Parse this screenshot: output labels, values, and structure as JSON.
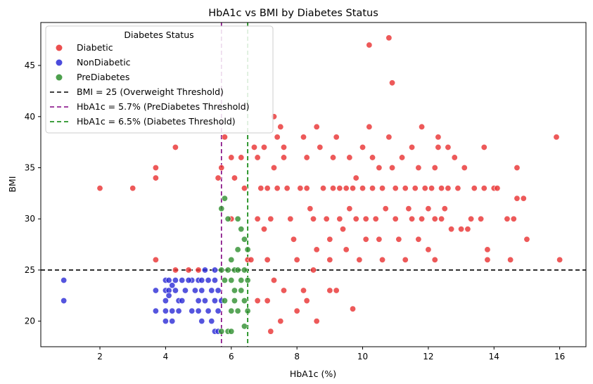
{
  "chart_data": {
    "type": "scatter",
    "title": "HbA1c vs BMI by Diabetes Status",
    "xlabel": "HbA1c (%)",
    "ylabel": "BMI",
    "xlim": [
      0.2,
      16.8
    ],
    "ylim": [
      17.5,
      49.2
    ],
    "xticks": [
      2,
      4,
      6,
      8,
      10,
      12,
      14,
      16
    ],
    "yticks": [
      20,
      25,
      30,
      35,
      40,
      45
    ],
    "grid": false,
    "legend": {
      "title": "Diabetes Status",
      "placement": "top-left"
    },
    "series": [
      {
        "name": "Diabetic",
        "color": "#e83030",
        "points": [
          [
            2.0,
            33
          ],
          [
            3.0,
            33
          ],
          [
            3.7,
            35
          ],
          [
            3.7,
            34
          ],
          [
            3.7,
            26
          ],
          [
            4.3,
            37
          ],
          [
            4.3,
            25
          ],
          [
            4.7,
            25
          ],
          [
            5.0,
            25
          ],
          [
            5.6,
            34
          ],
          [
            5.7,
            35
          ],
          [
            5.8,
            38
          ],
          [
            6.0,
            36
          ],
          [
            6.0,
            30
          ],
          [
            6.1,
            34
          ],
          [
            6.3,
            36
          ],
          [
            6.4,
            33
          ],
          [
            6.5,
            26
          ],
          [
            6.6,
            26
          ],
          [
            6.7,
            37
          ],
          [
            6.8,
            36
          ],
          [
            6.8,
            30
          ],
          [
            6.9,
            33
          ],
          [
            7.0,
            37
          ],
          [
            7.0,
            29
          ],
          [
            7.1,
            33
          ],
          [
            7.1,
            26
          ],
          [
            7.2,
            30
          ],
          [
            7.3,
            35
          ],
          [
            7.4,
            33
          ],
          [
            7.3,
            40
          ],
          [
            7.4,
            38
          ],
          [
            7.5,
            39
          ],
          [
            7.6,
            37
          ],
          [
            7.6,
            36
          ],
          [
            7.7,
            33
          ],
          [
            7.8,
            30
          ],
          [
            7.9,
            28
          ],
          [
            8.0,
            26
          ],
          [
            8.1,
            33
          ],
          [
            8.2,
            38
          ],
          [
            8.3,
            36
          ],
          [
            8.3,
            33
          ],
          [
            8.4,
            31
          ],
          [
            8.5,
            30
          ],
          [
            8.6,
            27
          ],
          [
            8.6,
            39
          ],
          [
            8.7,
            37
          ],
          [
            8.8,
            33
          ],
          [
            8.9,
            30
          ],
          [
            9.0,
            28
          ],
          [
            9.0,
            26
          ],
          [
            9.1,
            33
          ],
          [
            9.1,
            36
          ],
          [
            9.2,
            38
          ],
          [
            9.3,
            33
          ],
          [
            9.3,
            30
          ],
          [
            9.4,
            29
          ],
          [
            9.5,
            27
          ],
          [
            9.5,
            33
          ],
          [
            9.6,
            36
          ],
          [
            9.6,
            31
          ],
          [
            9.7,
            33
          ],
          [
            9.8,
            30
          ],
          [
            9.8,
            34
          ],
          [
            9.9,
            26
          ],
          [
            10.0,
            37
          ],
          [
            10.0,
            33
          ],
          [
            10.1,
            30
          ],
          [
            10.1,
            28
          ],
          [
            10.2,
            39
          ],
          [
            10.2,
            47
          ],
          [
            10.3,
            33
          ],
          [
            10.3,
            36
          ],
          [
            10.4,
            30
          ],
          [
            10.5,
            35
          ],
          [
            10.5,
            28
          ],
          [
            10.6,
            33
          ],
          [
            10.6,
            26
          ],
          [
            10.7,
            31
          ],
          [
            10.8,
            38
          ],
          [
            10.8,
            47.7
          ],
          [
            10.9,
            43.3
          ],
          [
            10.9,
            35
          ],
          [
            11.0,
            33
          ],
          [
            11.0,
            30
          ],
          [
            11.1,
            28
          ],
          [
            11.2,
            36
          ],
          [
            11.3,
            26
          ],
          [
            11.3,
            33
          ],
          [
            11.4,
            31
          ],
          [
            11.5,
            30
          ],
          [
            11.5,
            37
          ],
          [
            11.6,
            33
          ],
          [
            11.7,
            28
          ],
          [
            11.7,
            35
          ],
          [
            11.8,
            30
          ],
          [
            11.8,
            39
          ],
          [
            11.9,
            33
          ],
          [
            12.0,
            31
          ],
          [
            12.0,
            27
          ],
          [
            12.1,
            33
          ],
          [
            12.2,
            30
          ],
          [
            12.2,
            35
          ],
          [
            12.2,
            26
          ],
          [
            12.3,
            37
          ],
          [
            12.3,
            38
          ],
          [
            12.4,
            33
          ],
          [
            12.4,
            30
          ],
          [
            12.5,
            31
          ],
          [
            12.6,
            33
          ],
          [
            12.6,
            37
          ],
          [
            12.7,
            29
          ],
          [
            12.8,
            36
          ],
          [
            12.9,
            33
          ],
          [
            13.0,
            29
          ],
          [
            13.1,
            35
          ],
          [
            13.2,
            29
          ],
          [
            13.3,
            30
          ],
          [
            13.4,
            33
          ],
          [
            13.6,
            30
          ],
          [
            13.7,
            37
          ],
          [
            13.7,
            33
          ],
          [
            13.8,
            27
          ],
          [
            13.8,
            26
          ],
          [
            14.0,
            33
          ],
          [
            14.1,
            33
          ],
          [
            14.4,
            30
          ],
          [
            14.5,
            26
          ],
          [
            14.6,
            30
          ],
          [
            14.7,
            35
          ],
          [
            14.7,
            32
          ],
          [
            14.9,
            32
          ],
          [
            15.0,
            28
          ],
          [
            15.9,
            38
          ],
          [
            16.0,
            26
          ],
          [
            8.5,
            25
          ],
          [
            8.6,
            20
          ],
          [
            9.0,
            23
          ],
          [
            9.2,
            23
          ],
          [
            9.7,
            21.2
          ],
          [
            7.2,
            19
          ],
          [
            7.5,
            20
          ],
          [
            7.3,
            24
          ],
          [
            7.1,
            22
          ],
          [
            8.0,
            21
          ],
          [
            8.2,
            23
          ],
          [
            6.8,
            22
          ],
          [
            7.6,
            23
          ],
          [
            8.3,
            22
          ]
        ]
      },
      {
        "name": "NonDiabetic",
        "color": "#2b2bd6",
        "points": [
          [
            0.9,
            24
          ],
          [
            0.9,
            22
          ],
          [
            3.7,
            23
          ],
          [
            3.7,
            21
          ],
          [
            4.0,
            24
          ],
          [
            4.0,
            23
          ],
          [
            4.0,
            22
          ],
          [
            4.0,
            21
          ],
          [
            4.0,
            20
          ],
          [
            4.1,
            24
          ],
          [
            4.1,
            23
          ],
          [
            4.1,
            22.5
          ],
          [
            4.2,
            21
          ],
          [
            4.2,
            20
          ],
          [
            4.3,
            23
          ],
          [
            4.3,
            24
          ],
          [
            4.4,
            22
          ],
          [
            4.4,
            21
          ],
          [
            4.5,
            24
          ],
          [
            4.5,
            22
          ],
          [
            4.6,
            23
          ],
          [
            4.8,
            24
          ],
          [
            4.8,
            21
          ],
          [
            4.9,
            23
          ],
          [
            5.0,
            24
          ],
          [
            5.0,
            22
          ],
          [
            5.0,
            21
          ],
          [
            5.1,
            24
          ],
          [
            5.1,
            23
          ],
          [
            5.1,
            20
          ],
          [
            5.2,
            22
          ],
          [
            5.3,
            24
          ],
          [
            5.3,
            21
          ],
          [
            5.4,
            23
          ],
          [
            5.4,
            20
          ],
          [
            5.5,
            22
          ],
          [
            5.5,
            24
          ],
          [
            5.5,
            19
          ],
          [
            5.6,
            23
          ],
          [
            5.6,
            21
          ],
          [
            5.6,
            19
          ],
          [
            5.7,
            22
          ],
          [
            5.5,
            25
          ],
          [
            5.2,
            25
          ],
          [
            4.7,
            24
          ],
          [
            4.2,
            23.5
          ]
        ]
      },
      {
        "name": "PreDiabetes",
        "color": "#2e8f2e",
        "points": [
          [
            5.7,
            31
          ],
          [
            5.7,
            25
          ],
          [
            5.7,
            19
          ],
          [
            5.8,
            32
          ],
          [
            5.8,
            24
          ],
          [
            5.8,
            22
          ],
          [
            5.9,
            30
          ],
          [
            5.9,
            25
          ],
          [
            5.9,
            19
          ],
          [
            6.0,
            26
          ],
          [
            6.0,
            24
          ],
          [
            6.0,
            21
          ],
          [
            6.0,
            19
          ],
          [
            6.1,
            25
          ],
          [
            6.1,
            23
          ],
          [
            6.1,
            22
          ],
          [
            6.2,
            30
          ],
          [
            6.2,
            27
          ],
          [
            6.2,
            25
          ],
          [
            6.3,
            29
          ],
          [
            6.3,
            24
          ],
          [
            6.3,
            23
          ],
          [
            6.4,
            28
          ],
          [
            6.4,
            25
          ],
          [
            6.4,
            22
          ],
          [
            6.5,
            27
          ],
          [
            6.5,
            24
          ],
          [
            6.5,
            21
          ],
          [
            6.4,
            19.5
          ],
          [
            6.2,
            21
          ]
        ]
      }
    ],
    "reference_lines": [
      {
        "orientation": "horizontal",
        "value": 25,
        "color": "#000000",
        "label": "BMI = 25 (Overweight Threshold)"
      },
      {
        "orientation": "vertical",
        "value": 5.7,
        "color": "#800080",
        "label": "HbA1c = 5.7% (PreDiabetes Threshold)"
      },
      {
        "orientation": "vertical",
        "value": 6.5,
        "color": "#008000",
        "label": "HbA1c = 6.5% (Diabetes Threshold)"
      }
    ]
  }
}
